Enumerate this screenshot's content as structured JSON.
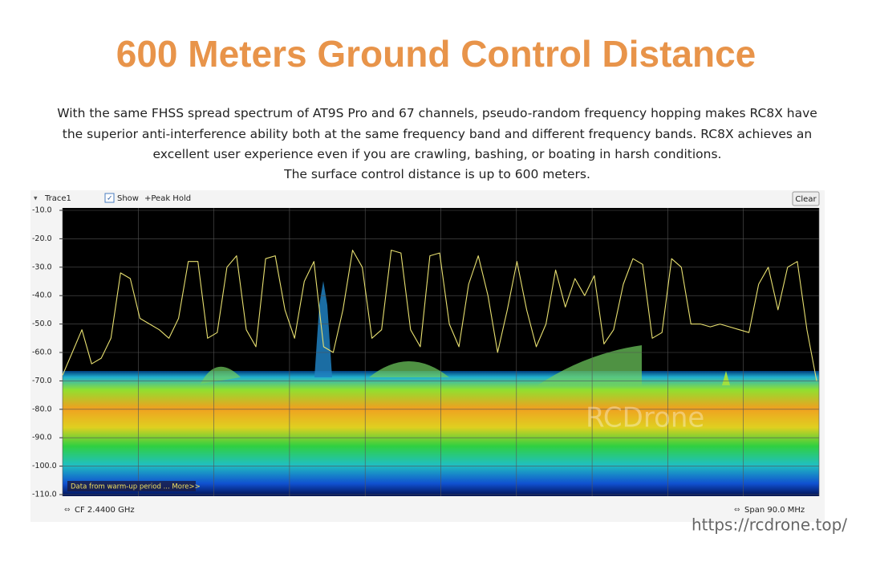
{
  "header": {
    "title": "600 Meters Ground Control Distance",
    "paragraphs": [
      "With the same FHSS spread spectrum of AT9S Pro and 67 channels, pseudo-random frequency hopping makes RC8X have the superior anti-interference ability both at the same frequency band and different frequency bands. RC8X achieves an excellent user experience even if you are crawling, bashing, or boating in harsh conditions.",
      "The surface control distance is up to 600 meters."
    ]
  },
  "chart_data": {
    "type": "line",
    "trace_label": "Trace1",
    "show_label": "Show",
    "peak_hold_label": "+Peak Hold",
    "clear_button": "Clear",
    "annotation": "Data from warm-up period ... More>>",
    "watermark": "RCDrone",
    "center_frequency": "CF  2.4400 GHz",
    "span": "Span  90.0 MHz",
    "color": "#e8e070",
    "values": [
      -68,
      -60,
      -52,
      -64,
      -62,
      -55,
      -32,
      -34,
      -48,
      -50,
      -52,
      -55,
      -48,
      -28,
      -28,
      -55,
      -53,
      -30,
      -26,
      -52,
      -58,
      -27,
      -26,
      -45,
      -55,
      -35,
      -28,
      -58,
      -60,
      -45,
      -24,
      -30,
      -55,
      -52,
      -24,
      -25,
      -52,
      -58,
      -26,
      -25,
      -50,
      -58,
      -36,
      -26,
      -40,
      -60,
      -45,
      -28,
      -45,
      -58,
      -50,
      -31,
      -44,
      -34,
      -40,
      -33,
      -57,
      -52,
      -36,
      -27,
      -29,
      -55,
      -53,
      -27,
      -30,
      -50,
      -50,
      -51,
      -50,
      -51,
      -52,
      -53,
      -36,
      -30,
      -45,
      -30,
      -28,
      -52,
      -70
    ],
    "ylim": [
      -10,
      -110
    ],
    "yticks": [
      {
        "value": -10,
        "label": "-10.0"
      },
      {
        "value": -20,
        "label": "-20.0"
      },
      {
        "value": -30,
        "label": "-30.0"
      },
      {
        "value": -40,
        "label": "-40.0"
      },
      {
        "value": -50,
        "label": "-50.0"
      },
      {
        "value": -60,
        "label": "-60.0"
      },
      {
        "value": -70,
        "label": "-70.0"
      },
      {
        "value": -80,
        "label": "-80.0"
      },
      {
        "value": -90,
        "label": "-90.0"
      },
      {
        "value": -100,
        "label": "-100.0"
      },
      {
        "value": -110,
        "label": "-110.0"
      }
    ],
    "grid": true
  },
  "footer": {
    "url": "https://rcdrone.top/"
  }
}
